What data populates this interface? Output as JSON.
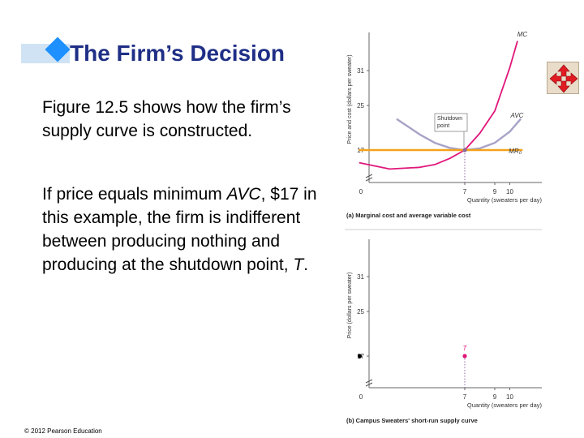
{
  "slide": {
    "title": "The Firm’s Decision",
    "para1": "Figure 12.5 shows how the firm’s supply curve is constructed.",
    "para2_prefix": "If price equals minimum ",
    "para2_avc": "AVC",
    "para2_middle": ", $17 in this example, the firm is indifferent between producing nothing and producing at the shutdown point, ",
    "para2_t": "T",
    "para2_suffix": ".",
    "footer": "© 2012 Pearson Education",
    "move_icon": "four-arrows-move-icon"
  },
  "chart_data": [
    {
      "type": "line",
      "title": "(a) Marginal cost and average variable cost",
      "xlabel": "Quantity (sweaters per day)",
      "ylabel": "Price and cost (dollars per sweater)",
      "xlim": [
        0,
        11
      ],
      "ylim": [
        0,
        36
      ],
      "x_ticks": [
        "7",
        "9",
        "10"
      ],
      "y_ticks": [
        "17",
        "25",
        "31"
      ],
      "origin_label": "0",
      "series": [
        {
          "name": "MC",
          "x": [
            0,
            2,
            4,
            5,
            6,
            7,
            8,
            9,
            10,
            10.5
          ],
          "y": [
            14.7,
            13.6,
            13.9,
            14.4,
            15.5,
            17,
            20,
            24,
            31.5,
            36
          ]
        },
        {
          "name": "AVC",
          "x": [
            2.5,
            4,
            5,
            6,
            7,
            8,
            9,
            10,
            10.7
          ],
          "y": [
            22.5,
            19.8,
            18.3,
            17.4,
            17,
            17.3,
            18.3,
            20.3,
            22.5
          ]
        },
        {
          "name": "MR₀",
          "x": [
            0,
            10.8
          ],
          "y": [
            17,
            17
          ]
        }
      ],
      "annotations": [
        {
          "text": "Shutdown point",
          "x": 7,
          "y": 17
        }
      ],
      "highlight_y": 17,
      "legend": "none",
      "grid": false
    },
    {
      "type": "scatter",
      "title": "(b) Campus Sweaters' short-run supply curve",
      "xlabel": "Quantity (sweaters per day)",
      "ylabel": "Price (dollars per sweater)",
      "xlim": [
        0,
        11
      ],
      "ylim": [
        0,
        36
      ],
      "x_ticks": [
        "7",
        "9",
        "10"
      ],
      "y_ticks": [
        "17",
        "25",
        "31"
      ],
      "origin_label": "0",
      "points": [
        {
          "x": 0,
          "y": 17,
          "color": "#000000"
        },
        {
          "x": 7,
          "y": 17,
          "color": "#e0167a",
          "label": "T"
        }
      ],
      "legend": "none",
      "grid": false
    }
  ],
  "colors": {
    "mc": "#e0167a",
    "avc": "#a7a3c7",
    "mr": "#f5a21b",
    "title": "#1f2f86",
    "accent": "#1e90ff",
    "gridline": "#cfcfcf"
  }
}
